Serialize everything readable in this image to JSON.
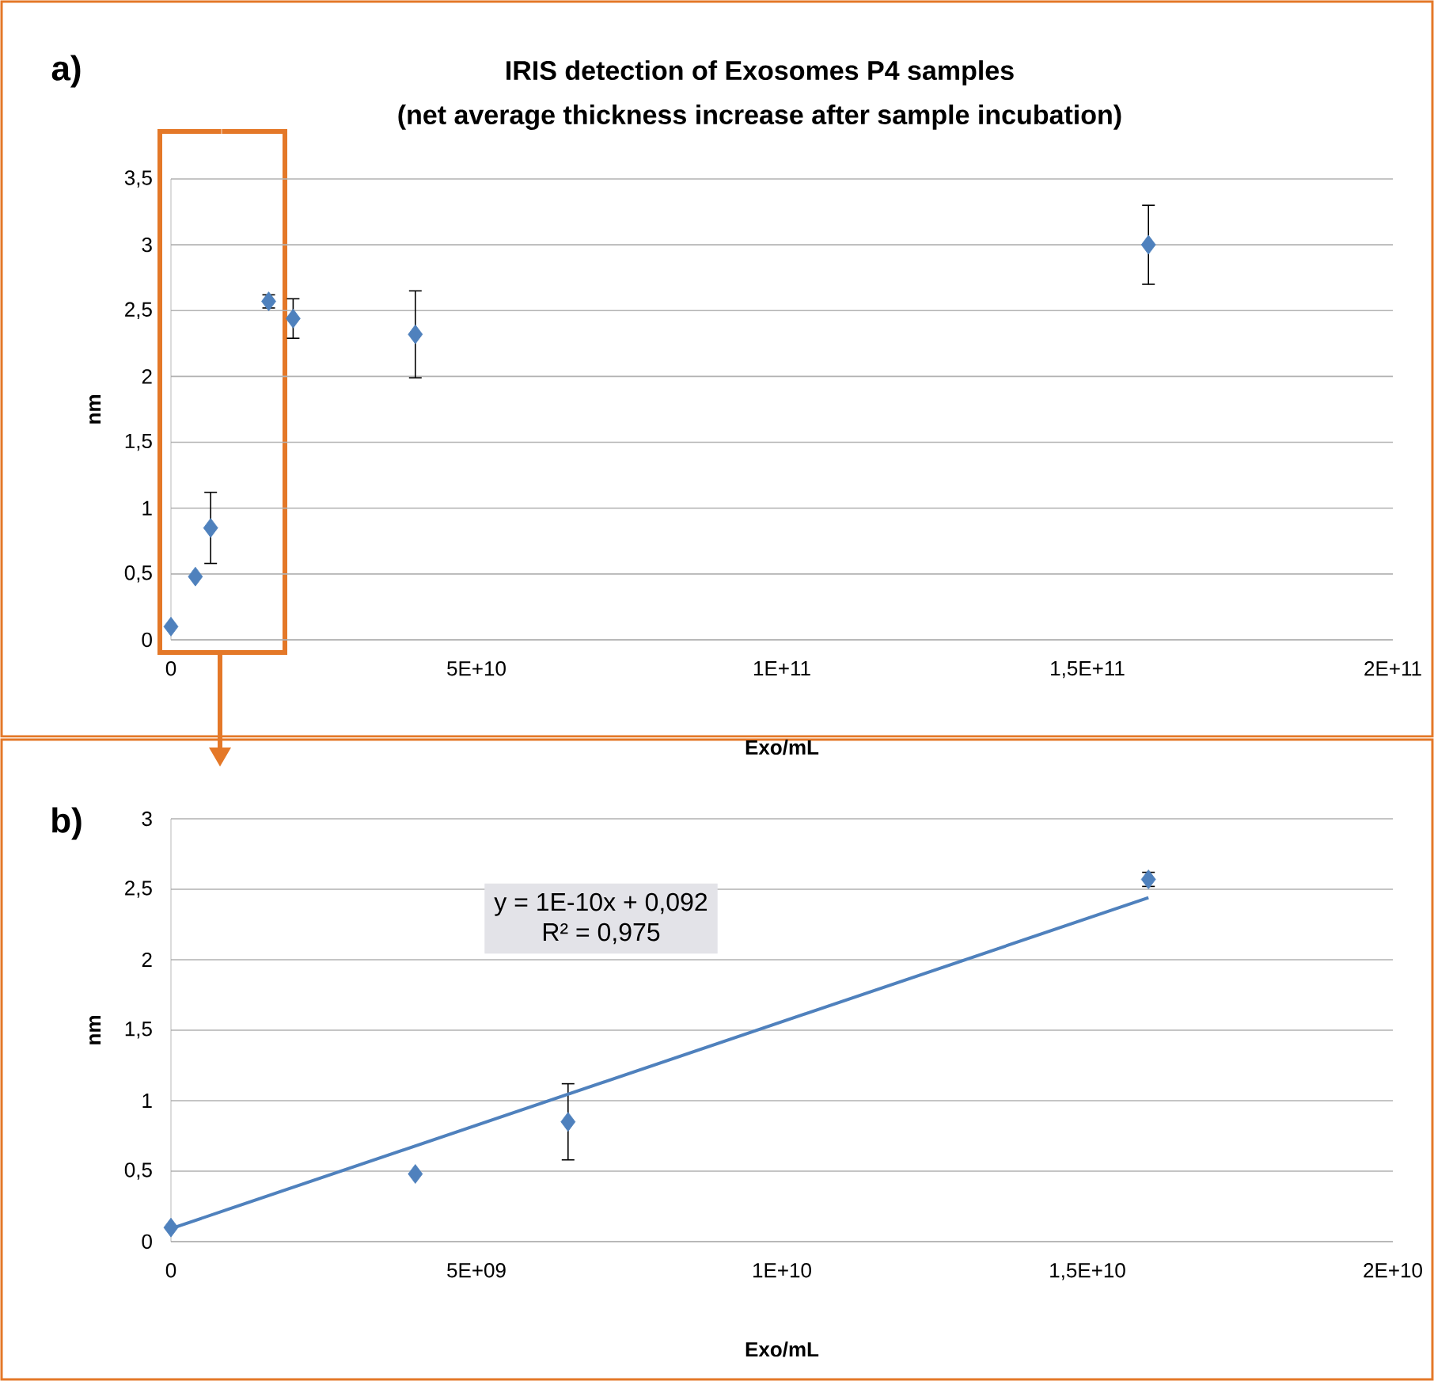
{
  "chart_data": [
    {
      "type": "scatter",
      "title": "IRIS detection of Exosomes P4 samples",
      "subtitle": "(net average thickness increase after sample incubation)",
      "xlabel": "Exo/mL",
      "ylabel": "nm",
      "annotations": [
        "a)"
      ],
      "series": [
        {
          "type": "scatter",
          "color": "#4f81bd",
          "marker": "diamond",
          "x": [
            0,
            4000000000.0,
            6500000000.0,
            16000000000.0,
            20000000000.0,
            40000000000.0,
            160000000000.0
          ],
          "values": [
            0.1,
            0.48,
            0.85,
            2.57,
            2.44,
            2.32,
            3.0
          ],
          "errors": [
            null,
            null,
            0.27,
            0.05,
            0.15,
            0.33,
            0.3
          ]
        }
      ],
      "xlim": [
        0,
        200000000000.0
      ],
      "ylim": [
        0,
        3.5
      ],
      "xticks": [
        0,
        {
          "value": 50000000000.0,
          "label": "5E+10"
        },
        {
          "value": 100000000000.0,
          "label": "1E+11"
        },
        {
          "value": 150000000000.0,
          "label": "1,5E+11"
        },
        {
          "value": 200000000000.0,
          "label": "2E+11"
        }
      ],
      "yticks": [
        0,
        {
          "value": 0.5,
          "label": "0,5"
        },
        1,
        {
          "value": 1.5,
          "label": "1,5"
        },
        2,
        {
          "value": 2.5,
          "label": "2,5"
        },
        3,
        {
          "value": 3.5,
          "label": "3,5"
        }
      ],
      "grid": "y"
    },
    {
      "type": "scatter",
      "xlabel": "Exo/mL",
      "ylabel": "nm",
      "annotations": [
        "b)",
        "y = 1E-10x + 0,092",
        "R² = 0,975"
      ],
      "series": [
        {
          "type": "scatter",
          "color": "#4f81bd",
          "marker": "diamond",
          "x": [
            0,
            4000000000.0,
            6500000000.0,
            16000000000.0
          ],
          "values": [
            0.1,
            0.48,
            0.85,
            2.57
          ],
          "errors": [
            null,
            null,
            0.27,
            0.05
          ]
        },
        {
          "type": "line",
          "color": "#4f81bd",
          "marker": "none",
          "x": [
            0,
            16000000000.0
          ],
          "values": [
            0.092,
            2.44
          ]
        }
      ],
      "xlim": [
        0,
        20000000000.0
      ],
      "ylim": [
        0,
        3
      ],
      "xticks": [
        0,
        {
          "value": 5000000000.0,
          "label": "5E+09"
        },
        {
          "value": 10000000000.0,
          "label": "1E+10"
        },
        {
          "value": 15000000000.0,
          "label": "1,5E+10"
        },
        {
          "value": 20000000000.0,
          "label": "2E+10"
        }
      ],
      "yticks": [
        0,
        {
          "value": 0.5,
          "label": "0,5"
        },
        1,
        {
          "value": 1.5,
          "label": "1,5"
        },
        2,
        {
          "value": 2.5,
          "label": "2,5"
        },
        3
      ],
      "grid": "y"
    }
  ]
}
